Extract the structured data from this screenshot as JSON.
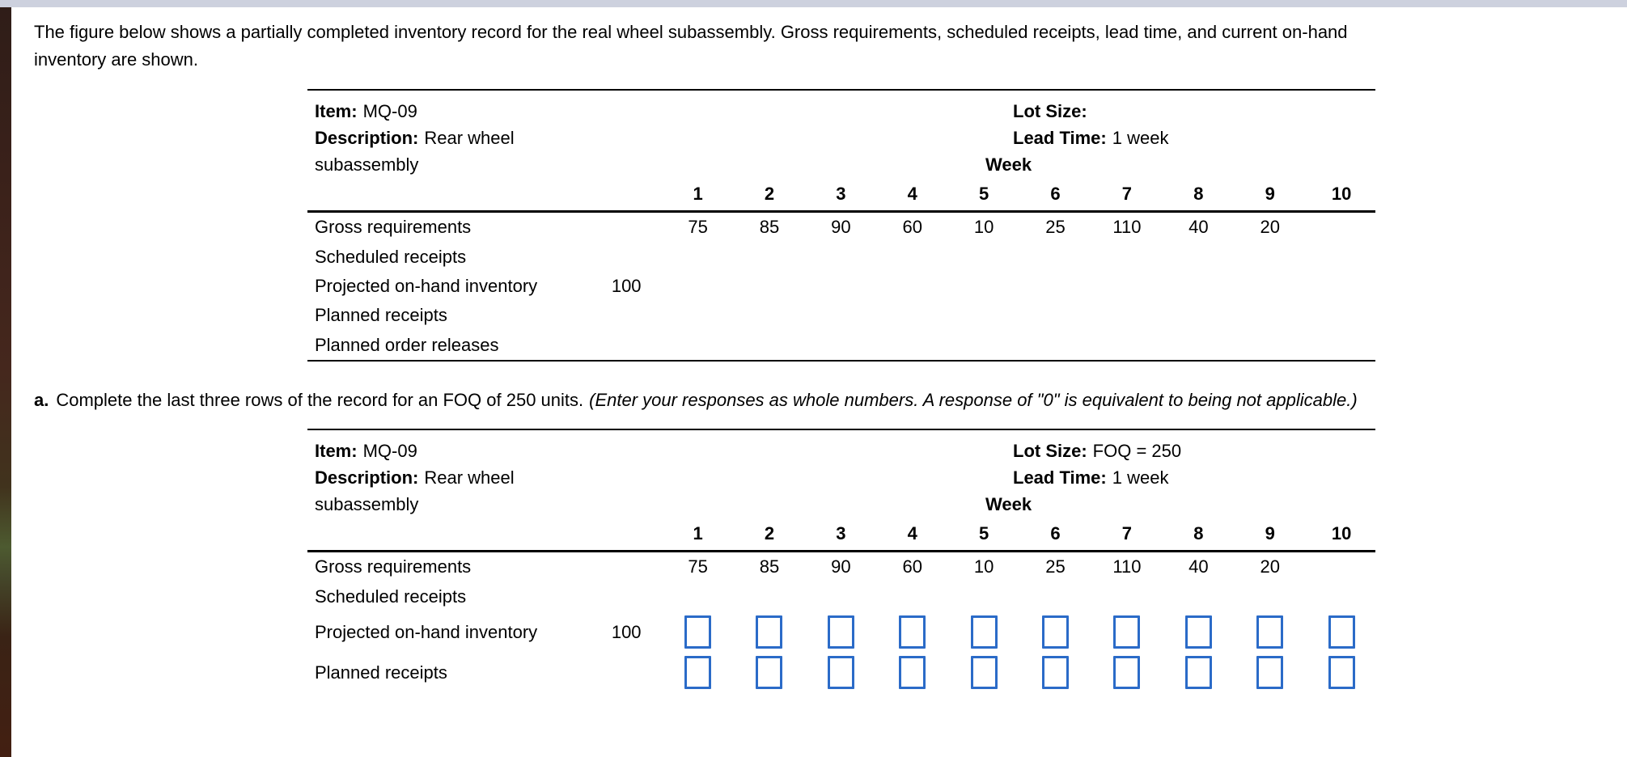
{
  "page": {
    "top_strip_color": "#cdd1de",
    "answer_box_border_color": "#2b6bc8"
  },
  "intro": {
    "line1": "The figure below shows a partially completed inventory record for the real wheel subassembly. Gross requirements, scheduled receipts, lead time, and current on-hand",
    "line2": "inventory are shown."
  },
  "instruction": {
    "prefix": "a.",
    "body": "Complete the last three rows of the record for an FOQ of 250 units.",
    "note": "(Enter your responses as whole numbers. A response of \"0\" is equivalent to being not applicable.)"
  },
  "record": {
    "item_label": "Item:",
    "item_value": "MQ-09",
    "description_label": "Description:",
    "description_value": "Rear wheel subassembly",
    "week_label": "Week",
    "weeks": [
      "1",
      "2",
      "3",
      "4",
      "5",
      "6",
      "7",
      "8",
      "9",
      "10"
    ]
  },
  "table1": {
    "lot_size_label": "Lot Size:",
    "lot_size_value": "",
    "lead_time_label": "Lead Time:",
    "lead_time_value": "1 week",
    "rows": [
      {
        "type": "text",
        "label": "Gross requirements",
        "initial": "",
        "cells": [
          "75",
          "85",
          "90",
          "60",
          "10",
          "25",
          "110",
          "40",
          "20",
          ""
        ]
      },
      {
        "type": "text",
        "label": "Scheduled receipts",
        "initial": "",
        "cells": [
          "",
          "",
          "",
          "",
          "",
          "",
          "",
          "",
          "",
          ""
        ]
      },
      {
        "type": "text",
        "label": "Projected on-hand inventory",
        "initial": "100",
        "cells": [
          "",
          "",
          "",
          "",
          "",
          "",
          "",
          "",
          "",
          ""
        ]
      },
      {
        "type": "text",
        "label": "Planned receipts",
        "initial": "",
        "cells": [
          "",
          "",
          "",
          "",
          "",
          "",
          "",
          "",
          "",
          ""
        ]
      },
      {
        "type": "text",
        "label": "Planned order releases",
        "initial": "",
        "cells": [
          "",
          "",
          "",
          "",
          "",
          "",
          "",
          "",
          "",
          ""
        ]
      }
    ]
  },
  "table2": {
    "lot_size_label": "Lot Size:",
    "lot_size_value": "FOQ = 250",
    "lead_time_label": "Lead Time:",
    "lead_time_value": "1 week",
    "rows": [
      {
        "type": "text",
        "label": "Gross requirements",
        "initial": "",
        "cells": [
          "75",
          "85",
          "90",
          "60",
          "10",
          "25",
          "110",
          "40",
          "20",
          ""
        ]
      },
      {
        "type": "text",
        "label": "Scheduled receipts",
        "initial": "",
        "cells": [
          "",
          "",
          "",
          "",
          "",
          "",
          "",
          "",
          "",
          ""
        ]
      },
      {
        "type": "input",
        "label": "Projected on-hand inventory",
        "initial": "100",
        "input_name": "projected-on-hand-inventory",
        "input_values": [
          "",
          "",
          "",
          "",
          "",
          "",
          "",
          "",
          "",
          ""
        ]
      },
      {
        "type": "input",
        "label": "Planned receipts",
        "initial": "",
        "input_name": "planned-receipts",
        "input_values": [
          "",
          "",
          "",
          "",
          "",
          "",
          "",
          "",
          "",
          ""
        ]
      }
    ]
  }
}
